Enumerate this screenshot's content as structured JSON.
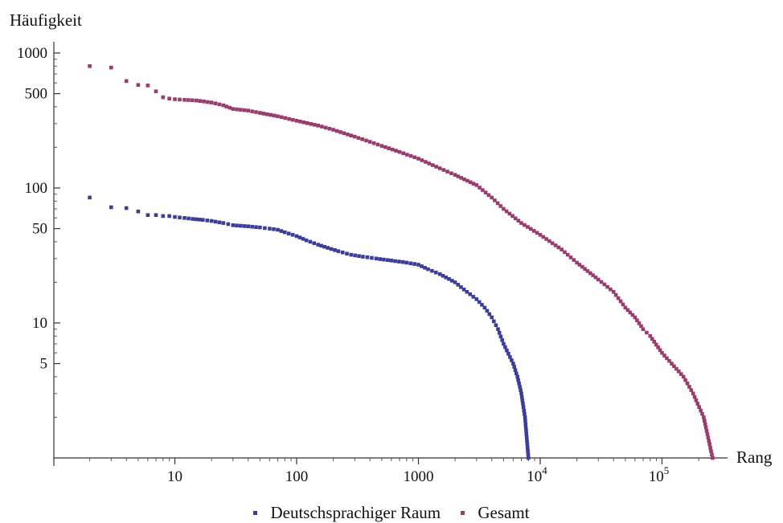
{
  "chart_data": {
    "type": "scatter",
    "title": "",
    "xlabel": "Rang",
    "ylabel": "Häufigkeit",
    "xscale": "log",
    "yscale": "log",
    "xlim": [
      1,
      350000
    ],
    "ylim": [
      1,
      1200
    ],
    "x_ticks": [
      {
        "value": 10,
        "label": "10"
      },
      {
        "value": 100,
        "label": "100"
      },
      {
        "value": 1000,
        "label": "1000"
      },
      {
        "value": 10000,
        "label": "10",
        "sup": "4"
      },
      {
        "value": 100000,
        "label": "10",
        "sup": "5"
      }
    ],
    "y_ticks": [
      {
        "value": 5,
        "label": "5"
      },
      {
        "value": 10,
        "label": "10"
      },
      {
        "value": 50,
        "label": "50"
      },
      {
        "value": 100,
        "label": "100"
      },
      {
        "value": 500,
        "label": "500"
      },
      {
        "value": 1000,
        "label": "1000"
      }
    ],
    "grid": false,
    "legend_position": "bottom",
    "series": [
      {
        "name": "Deutschsprachiger Raum",
        "color": "#3b3c9e",
        "points": [
          [
            2,
            85
          ],
          [
            3,
            72
          ],
          [
            4,
            71
          ],
          [
            5,
            67
          ],
          [
            6,
            63
          ],
          [
            7,
            63
          ],
          [
            8,
            62
          ],
          [
            9,
            62
          ],
          [
            10,
            61
          ],
          [
            12,
            60
          ],
          [
            14,
            59
          ],
          [
            17,
            58
          ],
          [
            20,
            57
          ],
          [
            25,
            55
          ],
          [
            30,
            53
          ],
          [
            40,
            52
          ],
          [
            50,
            51
          ],
          [
            60,
            50
          ],
          [
            70,
            49
          ],
          [
            80,
            47
          ],
          [
            100,
            44
          ],
          [
            120,
            41
          ],
          [
            150,
            38
          ],
          [
            180,
            36
          ],
          [
            220,
            34
          ],
          [
            280,
            32
          ],
          [
            350,
            31
          ],
          [
            450,
            30
          ],
          [
            600,
            29
          ],
          [
            800,
            28
          ],
          [
            1000,
            27
          ],
          [
            1200,
            25
          ],
          [
            1500,
            23
          ],
          [
            2000,
            20
          ],
          [
            2500,
            17
          ],
          [
            3000,
            15
          ],
          [
            3500,
            13
          ],
          [
            4000,
            11
          ],
          [
            4500,
            9
          ],
          [
            5000,
            7
          ],
          [
            6000,
            5
          ],
          [
            6500,
            4
          ],
          [
            7000,
            3
          ],
          [
            7500,
            2
          ],
          [
            8000,
            1
          ]
        ]
      },
      {
        "name": "Gesamt",
        "color": "#9c3a6e",
        "points": [
          [
            2,
            800
          ],
          [
            3,
            780
          ],
          [
            4,
            620
          ],
          [
            5,
            580
          ],
          [
            6,
            575
          ],
          [
            7,
            520
          ],
          [
            8,
            470
          ],
          [
            9,
            460
          ],
          [
            10,
            455
          ],
          [
            12,
            450
          ],
          [
            15,
            445
          ],
          [
            20,
            430
          ],
          [
            25,
            410
          ],
          [
            30,
            385
          ],
          [
            40,
            375
          ],
          [
            50,
            360
          ],
          [
            70,
            340
          ],
          [
            100,
            315
          ],
          [
            150,
            290
          ],
          [
            200,
            270
          ],
          [
            300,
            240
          ],
          [
            400,
            220
          ],
          [
            500,
            205
          ],
          [
            700,
            185
          ],
          [
            1000,
            165
          ],
          [
            1500,
            140
          ],
          [
            2000,
            125
          ],
          [
            3000,
            105
          ],
          [
            4000,
            85
          ],
          [
            5000,
            70
          ],
          [
            7000,
            55
          ],
          [
            10000,
            45
          ],
          [
            15000,
            35
          ],
          [
            20000,
            28
          ],
          [
            30000,
            21
          ],
          [
            40000,
            17
          ],
          [
            50000,
            13
          ],
          [
            60000,
            11
          ],
          [
            70000,
            9
          ],
          [
            80000,
            8
          ],
          [
            100000,
            6
          ],
          [
            120000,
            5
          ],
          [
            150000,
            4
          ],
          [
            180000,
            3
          ],
          [
            220000,
            2
          ],
          [
            260000,
            1
          ]
        ]
      }
    ]
  }
}
